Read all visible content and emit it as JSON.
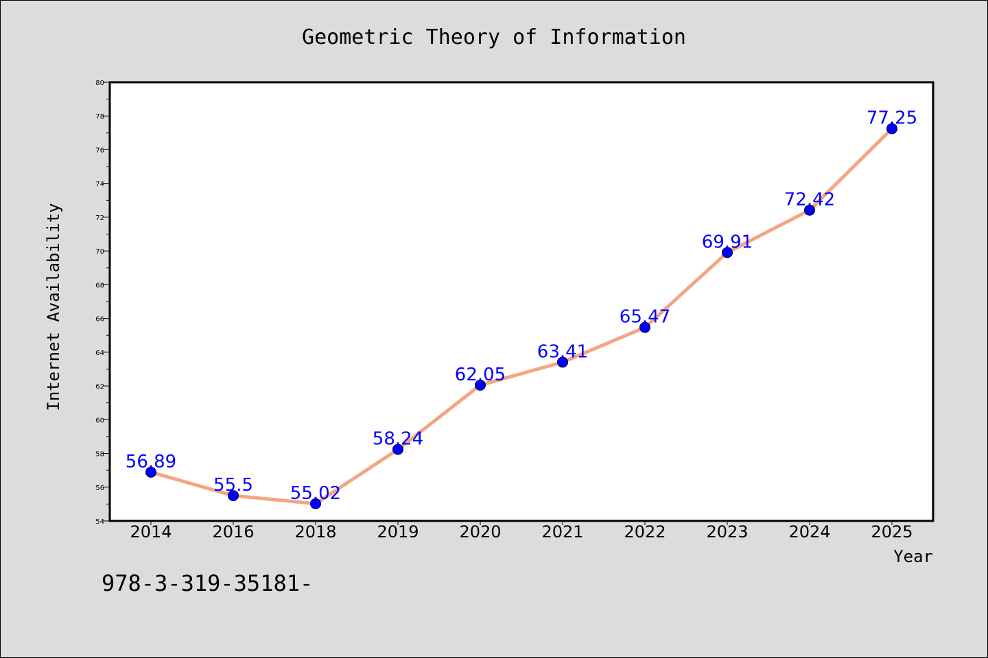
{
  "chart_data": {
    "type": "line",
    "title": "Geometric Theory of Information",
    "xlabel": "Year",
    "ylabel": "Internet Availability",
    "categories": [
      "2014",
      "2016",
      "2018",
      "2019",
      "2020",
      "2021",
      "2022",
      "2023",
      "2024",
      "2025"
    ],
    "series": [
      {
        "values": [
          56.89,
          55.5,
          55.02,
          58.24,
          62.05,
          63.41,
          65.47,
          69.91,
          72.42,
          77.25
        ],
        "labels": [
          "56.89",
          "55.5",
          "55.02",
          "58.24",
          "62.05",
          "63.41",
          "65.47",
          "69.91",
          "72.42",
          "77.25"
        ],
        "line_color": "#f4a582",
        "marker_color": "#0000ff",
        "label_color": "#0000ff"
      }
    ],
    "ylim": [
      54,
      80
    ],
    "yticks": [
      "54",
      "56",
      "58",
      "60",
      "62",
      "64",
      "66",
      "68",
      "70",
      "72",
      "74",
      "76",
      "78",
      "80"
    ],
    "grid": false,
    "legend": "none"
  },
  "footer_note": "978-3-319-35181-"
}
